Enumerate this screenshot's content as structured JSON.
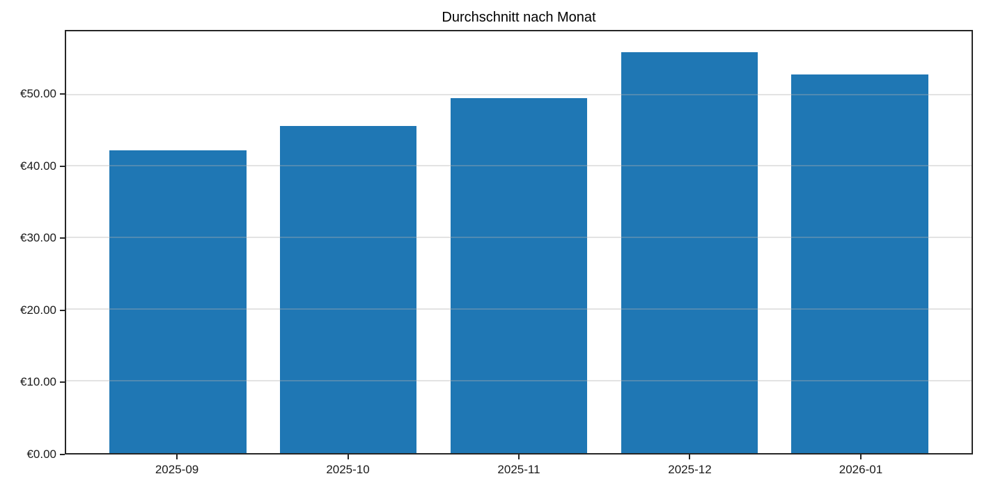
{
  "figure": {
    "background_color": "#ffffff",
    "text_color": "#1a1a1a",
    "spine_color": "#262626",
    "gridline_color": "#b0b0b0"
  },
  "chart_data": {
    "type": "bar",
    "title": "Durchschnitt nach Monat",
    "categories": [
      "2025-09",
      "2025-10",
      "2025-11",
      "2025-12",
      "2026-01"
    ],
    "values": [
      42.3,
      45.7,
      49.6,
      56.0,
      52.9
    ],
    "currency_prefix": "€",
    "bar_color": "#1f77b4",
    "xlabel": "",
    "ylabel": "",
    "ylim": [
      0,
      58.9
    ],
    "yticks": [
      0,
      10,
      20,
      30,
      40,
      50
    ],
    "ytick_labels": [
      "€0.00",
      "€10.00",
      "€20.00",
      "€30.00",
      "€40.00",
      "€50.00"
    ],
    "grid": "horizontal",
    "legend": "none"
  }
}
